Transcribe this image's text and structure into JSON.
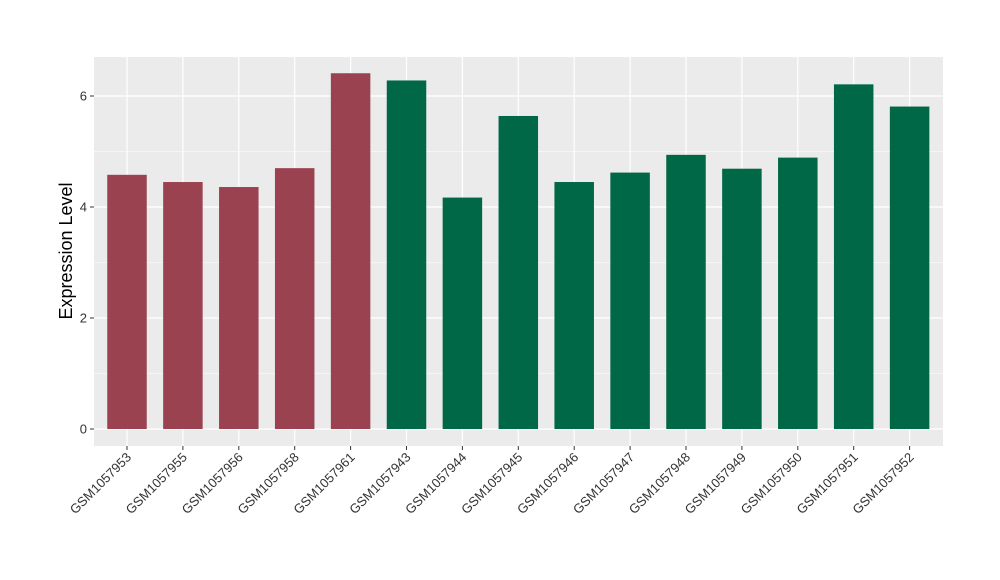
{
  "chart_data": {
    "type": "bar",
    "title": "",
    "xlabel": "",
    "ylabel": "Expression Level",
    "ylim": [
      0,
      6.7
    ],
    "y_ticks": [
      0,
      2,
      4,
      6
    ],
    "grid": true,
    "legend": "none",
    "panel_background": "#EBEBEB",
    "gridline_color": "#FFFFFF",
    "categories": [
      "GSM1057953",
      "GSM1057955",
      "GSM1057956",
      "GSM1057958",
      "GSM1057961",
      "GSM1057943",
      "GSM1057944",
      "GSM1057945",
      "GSM1057946",
      "GSM1057947",
      "GSM1057948",
      "GSM1057949",
      "GSM1057950",
      "GSM1057951",
      "GSM1057952"
    ],
    "values": [
      4.58,
      4.45,
      4.36,
      4.7,
      6.41,
      6.28,
      4.17,
      5.64,
      4.45,
      4.62,
      4.94,
      4.69,
      4.89,
      6.21,
      5.81
    ],
    "bar_colors": [
      "#9B4250",
      "#9B4250",
      "#9B4250",
      "#9B4250",
      "#9B4250",
      "#006747",
      "#006747",
      "#006747",
      "#006747",
      "#006747",
      "#006747",
      "#006747",
      "#006747",
      "#006747",
      "#006747"
    ]
  }
}
